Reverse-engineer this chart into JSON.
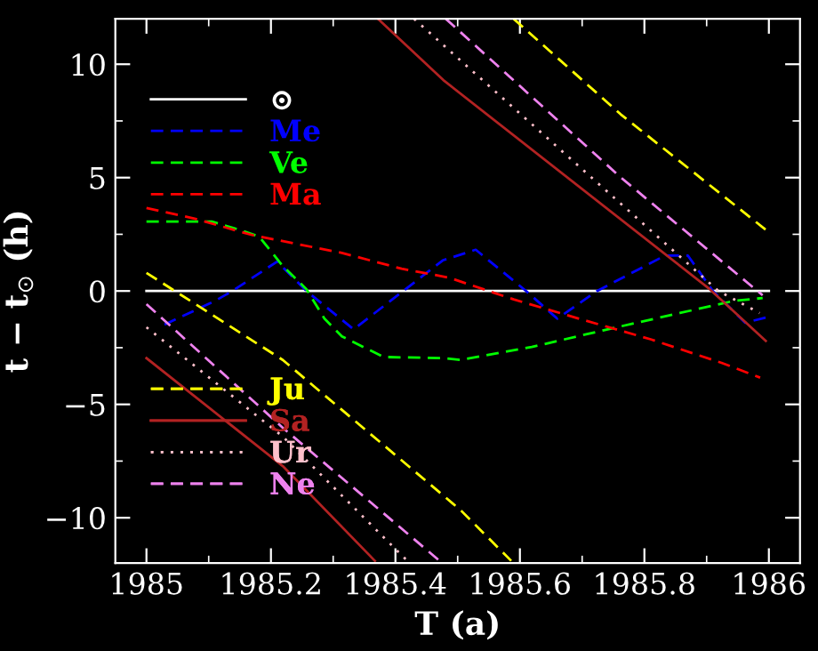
{
  "chart_data": {
    "type": "line",
    "xlabel": "T (a)",
    "ylabel": "t − t$_{⊙}$ (h)",
    "xlim": [
      1984.95,
      1986.05
    ],
    "ylim": [
      -12,
      12
    ],
    "xticks": [
      1985,
      1985.2,
      1985.4,
      1985.6,
      1985.8,
      1986
    ],
    "yticks": [
      {
        "value": -10,
        "label": "−10"
      },
      {
        "value": -5,
        "label": "−5"
      },
      0,
      5,
      10
    ],
    "grid": false,
    "legend": "left",
    "series": [
      {
        "name": "⊙",
        "color": "#ffffff",
        "line_style": "solid",
        "x": [
          1985,
          1986
        ],
        "values": [
          0,
          0
        ]
      },
      {
        "name": "Me",
        "color": "#0000ff",
        "line_style": "dashed",
        "x": [
          1985.029,
          1985.11,
          1985.138,
          1985.21,
          1985.257,
          1985.333,
          1985.476,
          1985.529,
          1985.61,
          1985.66,
          1985.724,
          1985.833,
          1985.87,
          1985.91,
          1985.962,
          1985.995
        ],
        "values": [
          -1.48,
          -0.44,
          0,
          1.3,
          0,
          -1.69,
          1.35,
          1.82,
          0,
          -1.22,
          0,
          1.56,
          1.56,
          0,
          -1.4,
          -1.17
        ]
      },
      {
        "name": "Ve",
        "color": "#00ff00",
        "line_style": "dashed",
        "x": [
          1985,
          1985.105,
          1985.153,
          1985.181,
          1985.219,
          1985.257,
          1985.286,
          1985.314,
          1985.381,
          1985.476,
          1985.505,
          1985.619,
          1985.733,
          1985.857,
          1985.943,
          1985.99
        ],
        "values": [
          3.06,
          3.06,
          2.67,
          2.4,
          1.1,
          0.08,
          -1.22,
          -2.0,
          -2.91,
          -2.96,
          -3.04,
          -2.47,
          -1.74,
          -0.97,
          -0.44,
          -0.31
        ]
      },
      {
        "name": "Ma",
        "color": "#ff0000",
        "line_style": "dashed",
        "x": [
          1985,
          1985.076,
          1985.171,
          1985.314,
          1985.41,
          1985.486,
          1985.59,
          1985.695,
          1985.81,
          1985.924,
          1985.986
        ],
        "values": [
          3.66,
          3.2,
          2.46,
          1.68,
          0.98,
          0.59,
          -0.37,
          -1.22,
          -2.13,
          -3.17,
          -3.82
        ]
      },
      {
        "name": "Ju",
        "color": "#ffff00",
        "line_style": "dashed",
        "x": [
          1985,
          1985.219,
          1985.505,
          1985.586,
          1985.588,
          1985.59,
          1985.762,
          1985.995
        ],
        "values": [
          0.8,
          -3.04,
          -9.67,
          -11.9,
          null,
          12,
          7.79,
          2.7
        ]
      },
      {
        "name": "Sa",
        "color": "#b22222",
        "line_style": "solid",
        "x": [
          1985,
          1985.219,
          1985.367,
          1985.37,
          1985.372,
          1985.477,
          1985.905,
          1985.995
        ],
        "values": [
          -2.96,
          -7.72,
          -11.9,
          null,
          12,
          9.3,
          0.08,
          -2.2
        ]
      },
      {
        "name": "Ur",
        "color": "#ffc0cb",
        "line_style": "dotted",
        "x": [
          1985,
          1985.219,
          1985.419,
          1985.425,
          1985.43,
          1985.491,
          1985.919,
          1985.985
        ],
        "values": [
          -1.6,
          -6.42,
          -11.9,
          null,
          12,
          10.5,
          0,
          -0.97
        ]
      },
      {
        "name": "Ne",
        "color": "#ee82ee",
        "line_style": "dashed",
        "x": [
          1985,
          1985.219,
          1985.471,
          1985.476,
          1985.481,
          1985.762,
          1985.99
        ],
        "values": [
          -0.58,
          -6.03,
          -11.9,
          null,
          12,
          5.01,
          -0.19
        ]
      }
    ]
  }
}
